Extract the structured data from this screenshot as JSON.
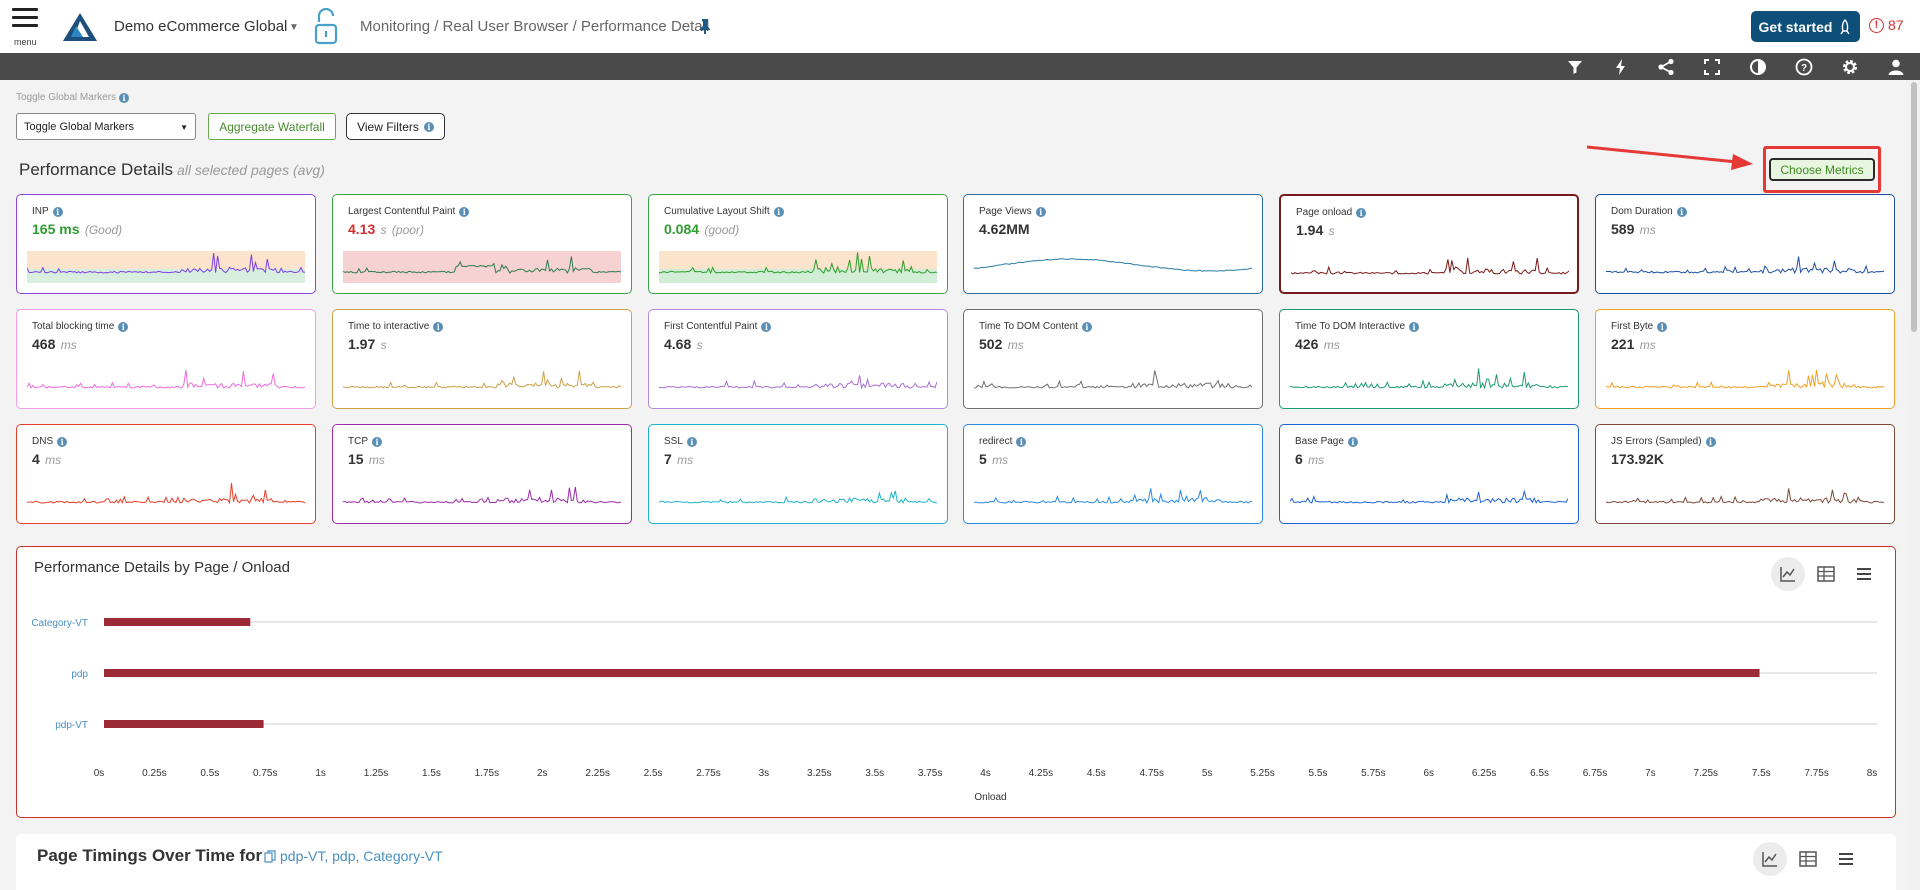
{
  "header": {
    "menu_label": "menu",
    "app_name": "Demo eCommerce Global",
    "breadcrumb": "Monitoring / Real User Browser / Performance Detail",
    "get_started": "Get started",
    "alert_count": "87"
  },
  "toolbar": {
    "icons": [
      "filter-icon",
      "bolt-icon",
      "share-icon",
      "fullscreen-icon",
      "contrast-icon",
      "help-icon",
      "settings-icon",
      "user-icon"
    ]
  },
  "filters": {
    "global_markers_label": "Toggle Global Markers",
    "global_markers_value": "Toggle Global Markers",
    "aggregate_waterfall": "Aggregate Waterfall",
    "view_filters": "View Filters"
  },
  "performance": {
    "title": "Performance Details",
    "subtitle": "all selected pages (avg)",
    "choose_metrics": "Choose Metrics"
  },
  "metrics": [
    {
      "label": "INP",
      "value": "165 ms",
      "unit": "",
      "status": "(Good)",
      "value_color": "#2e9e2e",
      "color": "#7b3fe4",
      "bands": true,
      "band_colors": [
        "#fbe3cc",
        "#d8efe0"
      ],
      "seed": 3
    },
    {
      "label": "Largest Contentful Paint",
      "value": "4.13",
      "unit": "s",
      "status": "(poor)",
      "value_color": "#d32f2f",
      "color": "#2e7d4f",
      "bands": true,
      "band_colors": [
        "#f7d2d2",
        "#f7d2d2"
      ],
      "seed": 7
    },
    {
      "label": "Cumulative Layout Shift",
      "value": "0.084",
      "unit": "",
      "status": "(good)",
      "value_color": "#2e9e2e",
      "color": "#2e9e2e",
      "bands": true,
      "band_colors": [
        "#fbe3cc",
        "#d3eed6"
      ],
      "seed": 11
    },
    {
      "label": "Page Views",
      "value": "4.62MM",
      "unit": "",
      "status": "",
      "value_color": "#333333",
      "color": "#2b7ba6",
      "bands": false,
      "seed": 0
    },
    {
      "label": "Page onload",
      "value": "1.94",
      "unit": "s",
      "status": "",
      "value_color": "#333333",
      "color": "#7b1a1a",
      "bands": false,
      "seed": 13
    },
    {
      "label": "Dom Duration",
      "value": "589",
      "unit": "ms",
      "status": "",
      "value_color": "#333333",
      "color": "#1f4fa0",
      "bands": false,
      "seed": 17
    },
    {
      "label": "Total blocking time",
      "value": "468",
      "unit": "ms",
      "status": "",
      "value_color": "#333333",
      "color": "#f06ce0",
      "bands": false,
      "seed": 19
    },
    {
      "label": "Time to interactive",
      "value": "1.97",
      "unit": "s",
      "status": "",
      "value_color": "#333333",
      "color": "#c9a24a",
      "bands": false,
      "seed": 23
    },
    {
      "label": "First Contentful Paint",
      "value": "4.68",
      "unit": "s",
      "status": "",
      "value_color": "#333333",
      "color": "#a56fd6",
      "bands": false,
      "seed": 29
    },
    {
      "label": "Time To DOM Content",
      "value": "502",
      "unit": "ms",
      "status": "",
      "value_color": "#333333",
      "color": "#707070",
      "bands": false,
      "seed": 31
    },
    {
      "label": "Time To DOM Interactive",
      "value": "426",
      "unit": "ms",
      "status": "",
      "value_color": "#333333",
      "color": "#1e9a73",
      "bands": false,
      "seed": 37
    },
    {
      "label": "First Byte",
      "value": "221",
      "unit": "ms",
      "status": "",
      "value_color": "#333333",
      "color": "#f2a024",
      "bands": false,
      "seed": 41
    },
    {
      "label": "DNS",
      "value": "4",
      "unit": "ms",
      "status": "",
      "value_color": "#333333",
      "color": "#e53e2a",
      "bands": false,
      "seed": 43
    },
    {
      "label": "TCP",
      "value": "15",
      "unit": "ms",
      "status": "",
      "value_color": "#333333",
      "color": "#9b2ca8",
      "bands": false,
      "seed": 47
    },
    {
      "label": "SSL",
      "value": "7",
      "unit": "ms",
      "status": "",
      "value_color": "#333333",
      "color": "#1fb3c9",
      "bands": false,
      "seed": 53
    },
    {
      "label": "redirect",
      "value": "5",
      "unit": "ms",
      "status": "",
      "value_color": "#333333",
      "color": "#2a8ae0",
      "bands": false,
      "seed": 59
    },
    {
      "label": "Base Page",
      "value": "6",
      "unit": "ms",
      "status": "",
      "value_color": "#333333",
      "color": "#1e63d6",
      "bands": false,
      "seed": 61
    },
    {
      "label": "JS Errors (Sampled)",
      "value": "173.92K",
      "unit": "",
      "status": "",
      "value_color": "#333333",
      "color": "#7a4a3a",
      "bands": false,
      "seed": 67
    }
  ],
  "card_borders": [
    "#8e44d6",
    "#3aa64a",
    "#3aa64a",
    "#2b6ea6",
    "#7b1a1a",
    "#1f4fa0",
    "#f39ce8",
    "#c9a24a",
    "#b28ad9",
    "#707070",
    "#1e9a73",
    "#f2a024",
    "#e53e2a",
    "#9b2ca8",
    "#1fb3c9",
    "#2a8ae0",
    "#1e63d6",
    "#7a4a3a"
  ],
  "by_page": {
    "title": "Performance Details by Page / Onload",
    "view_icons": [
      "line-chart-icon",
      "table-icon",
      "list-icon"
    ]
  },
  "chart_data": {
    "type": "bar",
    "orientation": "horizontal",
    "categories": [
      "Category-VT",
      "pdp",
      "pdp-VT"
    ],
    "values": [
      0.66,
      7.47,
      0.72
    ],
    "xlabel": "Onload",
    "xlim": [
      0,
      8
    ],
    "ticks": [
      "0s",
      "0.25s",
      "0.5s",
      "0.75s",
      "1s",
      "1.25s",
      "1.5s",
      "1.75s",
      "2s",
      "2.25s",
      "2.5s",
      "2.75s",
      "3s",
      "3.25s",
      "3.5s",
      "3.75s",
      "4s",
      "4.25s",
      "4.5s",
      "4.75s",
      "5s",
      "5.25s",
      "5.5s",
      "5.75s",
      "6s",
      "6.25s",
      "6.5s",
      "6.75s",
      "7s",
      "7.25s",
      "7.5s",
      "7.75s",
      "8s"
    ],
    "bar_color": "#9b2a35",
    "grid": true
  },
  "page_timings": {
    "title": "Page Timings Over Time for",
    "pages": "pdp-VT, pdp, Category-VT"
  }
}
